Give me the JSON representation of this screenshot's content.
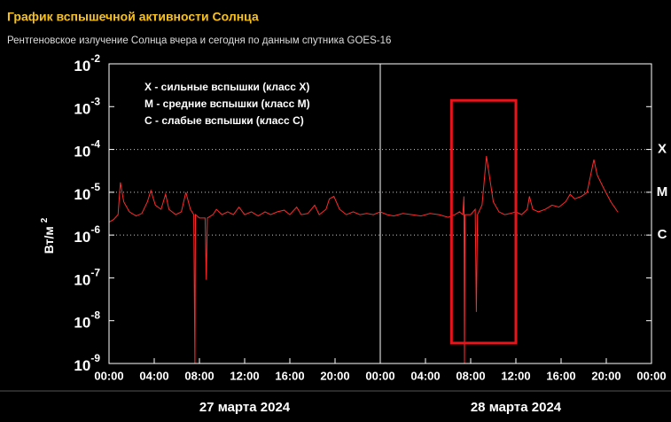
{
  "chart_data": {
    "type": "line",
    "title": "График вспышечной активности Солнца",
    "subtitle": "Рентгеновское излучение Солнца вчера и сегодня по данным спутника GOES-16",
    "ylabel": "Вт/м",
    "ylabel_sup": "2",
    "log_y": true,
    "color": "#ff2a2a",
    "xlim": [
      0,
      48
    ],
    "ylim": [
      1e-09,
      0.01
    ],
    "xticks": [
      {
        "value": 0,
        "label": "00:00"
      },
      {
        "value": 4,
        "label": "04:00"
      },
      {
        "value": 8,
        "label": "08:00"
      },
      {
        "value": 12,
        "label": "12:00"
      },
      {
        "value": 16,
        "label": "16:00"
      },
      {
        "value": 20,
        "label": "20:00"
      },
      {
        "value": 24,
        "label": "00:00"
      },
      {
        "value": 28,
        "label": "04:00"
      },
      {
        "value": 32,
        "label": "08:00"
      },
      {
        "value": 36,
        "label": "12:00"
      },
      {
        "value": 40,
        "label": "16:00"
      },
      {
        "value": 44,
        "label": "20:00"
      },
      {
        "value": 48,
        "label": "00:00"
      }
    ],
    "yticks": [
      {
        "value": 0.01,
        "label": "10",
        "sup": "-2"
      },
      {
        "value": 0.001,
        "label": "10",
        "sup": "-3"
      },
      {
        "value": 0.0001,
        "label": "10",
        "sup": "-4"
      },
      {
        "value": 1e-05,
        "label": "10",
        "sup": "-5"
      },
      {
        "value": 1e-06,
        "label": "10",
        "sup": "-6"
      },
      {
        "value": 1e-07,
        "label": "10",
        "sup": "-7"
      },
      {
        "value": 1e-08,
        "label": "10",
        "sup": "-8"
      },
      {
        "value": 1e-09,
        "label": "10",
        "sup": "-9"
      }
    ],
    "dates": [
      "27 марта 2024",
      "28 марта 2024"
    ],
    "class_lines": [
      {
        "value": 0.0001,
        "label": "X"
      },
      {
        "value": 1e-05,
        "label": "M"
      },
      {
        "value": 1e-06,
        "label": "C"
      }
    ],
    "legend_notes": [
      "X - сильные вспышки (класс X)",
      "M - средние вспышки (класс M)",
      "C - слабые вспышки (класс C)"
    ],
    "highlight": {
      "xlim": [
        30.3,
        36.0
      ],
      "ylim": [
        3e-09,
        0.0014
      ],
      "color": "#e8141c"
    },
    "x": [
      0,
      0.4,
      0.8,
      1.0,
      1.3,
      1.8,
      2.4,
      2.9,
      3.4,
      3.7,
      4.1,
      4.6,
      5.0,
      5.3,
      5.9,
      6.4,
      6.8,
      7.2,
      7.5,
      7.6,
      7.65,
      8.0,
      8.5,
      8.6,
      8.7,
      9.2,
      9.5,
      10.0,
      10.5,
      11.0,
      11.5,
      12.0,
      12.6,
      13.2,
      13.8,
      14.3,
      14.9,
      15.5,
      16.0,
      16.6,
      17.0,
      17.6,
      18.2,
      18.6,
      19.2,
      19.5,
      19.9,
      20.4,
      21.0,
      21.6,
      22.2,
      22.8,
      23.4,
      24.0,
      24.6,
      25.2,
      26,
      26.8,
      27.6,
      28.4,
      29.2,
      30.0,
      30.6,
      31.0,
      31.3,
      31.4,
      31.45,
      31.5,
      32.0,
      32.4,
      32.5,
      32.6,
      33.0,
      33.4,
      33.7,
      34.0,
      34.5,
      35.0,
      35.5,
      36.0,
      36.5,
      37.0,
      37.2,
      37.5,
      38.0,
      38.6,
      39.2,
      39.8,
      40.4,
      40.8,
      41.2,
      41.8,
      42.3,
      42.9,
      43.2,
      43.8,
      44.4,
      45.0
    ],
    "values": [
      2e-06,
      2.3e-06,
      3e-06,
      1.7e-05,
      6e-06,
      3.5e-06,
      2.8e-06,
      3.2e-06,
      6e-06,
      1.1e-05,
      5e-06,
      4e-06,
      9e-06,
      4e-06,
      3e-06,
      3.5e-06,
      1e-05,
      4e-06,
      3e-06,
      1e-09,
      3e-06,
      2.5e-06,
      2.5e-06,
      9e-08,
      2.5e-06,
      3e-06,
      4e-06,
      3e-06,
      3.5e-06,
      3e-06,
      4.5e-06,
      3e-06,
      3.5e-06,
      2.8e-06,
      3.5e-06,
      3e-06,
      3.5e-06,
      3.8e-06,
      3e-06,
      4.5e-06,
      3e-06,
      3.2e-06,
      5e-06,
      3e-06,
      4e-06,
      7e-06,
      8e-06,
      4e-06,
      3e-06,
      3.5e-06,
      3e-06,
      3.2e-06,
      3e-06,
      3.5e-06,
      3e-06,
      2.8e-06,
      3.2e-06,
      3e-06,
      2.8e-06,
      3.2e-06,
      3e-06,
      2.6e-06,
      3e-06,
      3.5e-06,
      3e-06,
      8e-06,
      1e-09,
      3e-06,
      3e-06,
      4e-06,
      1.6e-08,
      3e-06,
      5e-06,
      7e-05,
      2e-05,
      6e-06,
      3.5e-06,
      3e-06,
      3.2e-06,
      3.5e-06,
      3e-06,
      4e-06,
      8e-06,
      4e-06,
      3.5e-06,
      4e-06,
      5e-06,
      4.5e-06,
      6e-06,
      9e-06,
      7e-06,
      8e-06,
      1e-05,
      5.8e-05,
      2.5e-05,
      1.2e-05,
      6e-06,
      3.5e-06
    ]
  }
}
